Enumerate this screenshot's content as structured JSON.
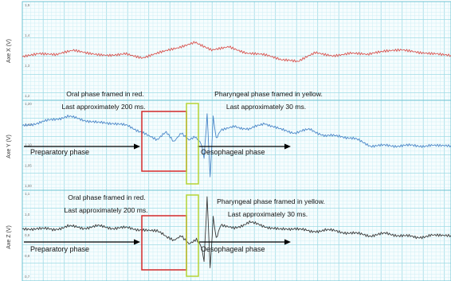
{
  "colors": {
    "x_trace": "#d9534f",
    "y_trace": "#4a86c8",
    "z_trace": "#3a3a3a",
    "oral_box": "#d42a2a",
    "pharyngeal_box": "#b4d334",
    "grid_minor": "#cdeef4",
    "grid_major": "#9fdbe6"
  },
  "chart_data": [
    {
      "type": "line",
      "id": "x",
      "title": "",
      "ylabel": "Axe X (V)",
      "ylim": [
        1.15,
        1.5
      ],
      "yticks": [
        "1,5",
        "1,4",
        "1,3",
        "1,2"
      ],
      "grid": true,
      "series": [
        {
          "color": "#d9534f",
          "x": [
            0,
            22,
            45,
            68,
            91,
            114,
            136,
            159,
            182,
            205,
            228,
            250,
            273,
            296,
            319,
            342,
            364,
            387,
            410,
            433,
            456,
            478,
            501,
            524,
            547,
            566
          ],
          "values": [
            1.3,
            1.32,
            1.31,
            1.33,
            1.32,
            1.31,
            1.32,
            1.3,
            1.32,
            1.34,
            1.37,
            1.33,
            1.35,
            1.32,
            1.31,
            1.29,
            1.28,
            1.32,
            1.31,
            1.32,
            1.31,
            1.33,
            1.33,
            1.32,
            1.32,
            1.31
          ]
        }
      ]
    },
    {
      "type": "line",
      "id": "y",
      "title": "",
      "ylabel": "Axe Y (V)",
      "ylim": [
        0.98,
        1.22
      ],
      "yticks": [
        "1,20",
        "1,15",
        "1,10",
        "1,05",
        "1,00"
      ],
      "grid": true,
      "series": [
        {
          "color": "#4a86c8",
          "x": [
            0,
            20,
            40,
            60,
            80,
            100,
            120,
            140,
            160,
            178,
            190,
            200,
            210,
            220,
            228,
            236,
            240,
            244,
            248,
            252,
            256,
            262,
            280,
            300,
            320,
            340,
            360,
            380,
            400,
            420,
            440,
            460,
            480,
            500,
            520,
            540,
            566
          ],
          "values": [
            1.16,
            1.17,
            1.18,
            1.19,
            1.18,
            1.17,
            1.17,
            1.16,
            1.14,
            1.12,
            1.14,
            1.11,
            1.14,
            1.12,
            1.13,
            1.11,
            1.06,
            1.2,
            1.0,
            1.19,
            1.12,
            1.15,
            1.16,
            1.15,
            1.17,
            1.15,
            1.14,
            1.15,
            1.13,
            1.13,
            1.12,
            1.1,
            1.1,
            1.1,
            1.1,
            1.1,
            1.1
          ]
        }
      ],
      "annotations": {
        "oral": [
          "Oral phase framed in red.",
          "Last approximately 200 ms."
        ],
        "pharyngeal": [
          "Pharyngeal phase framed in yellow.",
          "Last approximately 30 ms."
        ],
        "preparatory": "Preparatory phase",
        "oesophageal": "Oesophageal phase"
      }
    },
    {
      "type": "line",
      "id": "z",
      "title": "",
      "ylabel": "Axe Z (V)",
      "ylim": [
        0.65,
        1.1
      ],
      "yticks": [
        "1,1",
        "1,0",
        "0,9",
        "0,8",
        "0,7"
      ],
      "grid": true,
      "series": [
        {
          "color": "#3a3a3a",
          "x": [
            0,
            20,
            40,
            60,
            80,
            100,
            120,
            140,
            160,
            178,
            190,
            200,
            210,
            220,
            230,
            236,
            240,
            244,
            248,
            252,
            256,
            262,
            280,
            300,
            320,
            340,
            360,
            380,
            400,
            420,
            440,
            460,
            480,
            500,
            520,
            540,
            566
          ],
          "values": [
            0.91,
            0.92,
            0.91,
            0.93,
            0.92,
            0.93,
            0.92,
            0.92,
            0.91,
            0.91,
            0.87,
            0.85,
            0.88,
            0.84,
            0.86,
            0.83,
            0.74,
            1.09,
            0.7,
            0.98,
            0.86,
            0.94,
            0.92,
            0.95,
            0.93,
            0.91,
            0.92,
            0.9,
            0.91,
            0.9,
            0.89,
            0.88,
            0.89,
            0.88,
            0.87,
            0.88,
            0.88
          ]
        }
      ],
      "annotations": {
        "oral": [
          "Oral phase framed in red.",
          "Last approximately 200 ms."
        ],
        "pharyngeal": [
          "Pharyngeal phase framed in yellow.",
          "Last approximately 30 ms."
        ],
        "preparatory": "Preparatory phase",
        "oesophageal": "Oesophageal phase"
      }
    }
  ]
}
